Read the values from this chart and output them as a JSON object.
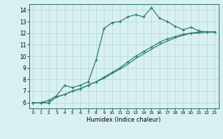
{
  "x": [
    0,
    1,
    2,
    3,
    4,
    5,
    6,
    7,
    8,
    9,
    10,
    11,
    12,
    13,
    14,
    15,
    16,
    17,
    18,
    19,
    20,
    21,
    22,
    23
  ],
  "line1": [
    6.0,
    6.0,
    6.2,
    6.6,
    7.5,
    7.3,
    7.5,
    7.8,
    9.7,
    12.4,
    12.9,
    13.0,
    13.4,
    13.6,
    13.4,
    14.2,
    13.3,
    13.0,
    12.6,
    12.3,
    12.5,
    12.2,
    12.1,
    12.1
  ],
  "line2": [
    6.0,
    6.0,
    6.0,
    6.5,
    6.7,
    7.0,
    7.2,
    7.5,
    7.8,
    8.2,
    8.6,
    9.0,
    9.5,
    10.0,
    10.4,
    10.8,
    11.2,
    11.5,
    11.7,
    11.9,
    12.0,
    12.1,
    12.1,
    12.1
  ],
  "line3": [
    6.0,
    6.0,
    6.0,
    6.5,
    6.7,
    7.0,
    7.2,
    7.5,
    7.8,
    8.1,
    8.5,
    8.9,
    9.3,
    9.8,
    10.2,
    10.6,
    11.0,
    11.3,
    11.6,
    11.8,
    12.0,
    12.0,
    12.1,
    12.1
  ],
  "line_color": "#2e7d6e",
  "bg_color": "#d9f0f0",
  "grid_color": "#b0d8d8",
  "xlabel": "Humidex (Indice chaleur)",
  "xlim": [
    -0.5,
    23.5
  ],
  "ylim": [
    5.5,
    14.5
  ],
  "yticks": [
    6,
    7,
    8,
    9,
    10,
    11,
    12,
    13,
    14
  ],
  "xticks": [
    0,
    1,
    2,
    3,
    4,
    5,
    6,
    7,
    8,
    9,
    10,
    11,
    12,
    13,
    14,
    15,
    16,
    17,
    18,
    19,
    20,
    21,
    22,
    23
  ]
}
